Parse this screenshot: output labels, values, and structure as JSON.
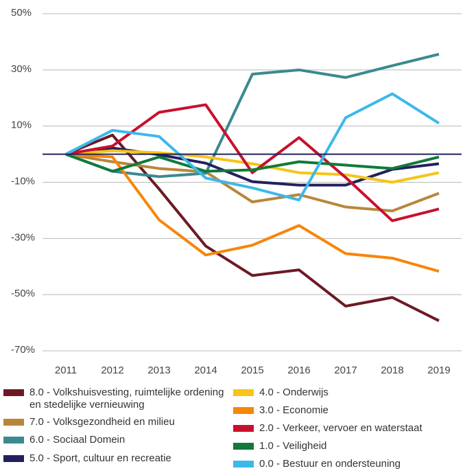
{
  "chart_data": {
    "type": "line",
    "categories": [
      "2011",
      "2012",
      "2013",
      "2014",
      "2015",
      "2016",
      "2017",
      "2018",
      "2019"
    ],
    "ylim": [
      -70,
      50
    ],
    "yticks": [
      {
        "value": -70,
        "label": "-70%"
      },
      {
        "value": -50,
        "label": "-50%"
      },
      {
        "value": -30,
        "label": "-30%"
      },
      {
        "value": -10,
        "label": "-10%"
      },
      {
        "value": 10,
        "label": "10%"
      },
      {
        "value": 30,
        "label": "30%"
      },
      {
        "value": 50,
        "label": "50%"
      }
    ],
    "grid": true,
    "series": [
      {
        "name": "8.0 - Volkshuisvesting, ruimtelijke ordening en stedelijke vernieuwing",
        "color": "#6b1a24",
        "values": [
          0,
          6.8,
          -12.4,
          -32.7,
          -43.2,
          -41.2,
          -54.1,
          -51,
          -59.3
        ]
      },
      {
        "name": "7.0 - Volksgezondheid en milieu",
        "color": "#b8863b",
        "values": [
          0,
          -2.7,
          -5.1,
          -6.3,
          -17,
          -14.4,
          -18.8,
          -20.2,
          -13.9
        ]
      },
      {
        "name": "6.0 - Sociaal Domein",
        "color": "#3a8a8f",
        "values": [
          0,
          -6.1,
          -8,
          -6.8,
          28.5,
          30,
          27.3,
          31.5,
          35.6
        ]
      },
      {
        "name": "5.0 - Sport, cultuur en recreatie",
        "color": "#23205e",
        "values": [
          0,
          2.2,
          -0.2,
          -3.2,
          -9.8,
          -11,
          -11,
          -5.4,
          -3.4
        ]
      },
      {
        "name": "4.0 - Onderwijs",
        "color": "#f5c518",
        "values": [
          0,
          1.2,
          0.5,
          -1,
          -3.4,
          -6.6,
          -7.3,
          -10,
          -6.6
        ]
      },
      {
        "name": "3.0 - Economie",
        "color": "#f7850a",
        "values": [
          0,
          -1,
          -23.4,
          -35.9,
          -32.4,
          -25.4,
          -35.4,
          -37,
          -41.7
        ]
      },
      {
        "name": "2.0 - Verkeer, vervoer en waterstaat",
        "color": "#c8102e",
        "values": [
          0,
          2.9,
          14.9,
          17.6,
          -6.6,
          5.9,
          -8.3,
          -23.7,
          -19.5
        ]
      },
      {
        "name": "1.0 - Veiligheid",
        "color": "#0f7a3a",
        "values": [
          0,
          -6.1,
          -1,
          -6.1,
          -5.6,
          -2.7,
          -3.9,
          -5.1,
          -1
        ]
      },
      {
        "name": "0.0 - Bestuur en ondersteuning",
        "color": "#3db8ea",
        "values": [
          0,
          8.5,
          6.3,
          -8.5,
          -12,
          -16.3,
          13,
          21.5,
          11
        ]
      }
    ]
  }
}
